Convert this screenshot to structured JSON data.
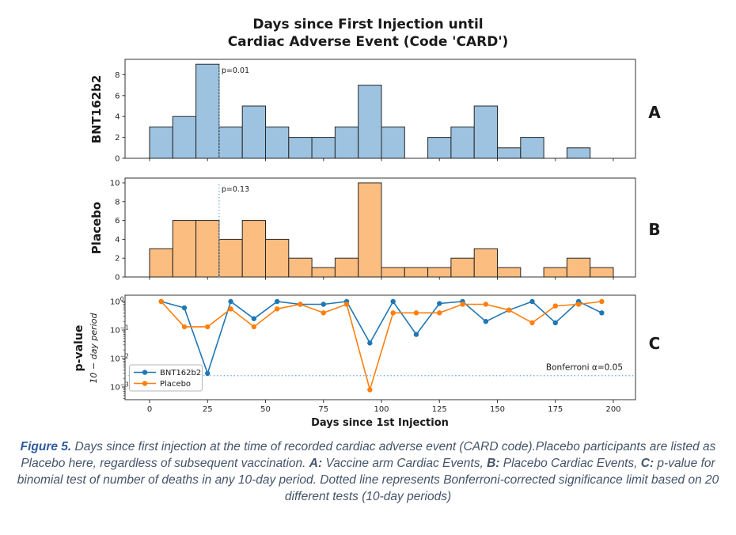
{
  "title": {
    "line1": "Days since First Injection until",
    "line2": "Cardiac Adverse Event (Code 'CARD')"
  },
  "chart_data": [
    {
      "type": "bar",
      "panel_label": "A",
      "ylabel": "BNT162b2",
      "bin_start": 0,
      "bin_width": 10,
      "bin_unit": "days",
      "values": [
        3,
        4,
        9,
        3,
        5,
        3,
        2,
        2,
        3,
        7,
        3,
        0,
        2,
        3,
        5,
        1,
        2,
        0,
        1,
        0
      ],
      "yticks": [
        0,
        2,
        4,
        6,
        8
      ],
      "ylim": [
        0,
        9.45
      ],
      "xlim": [
        0,
        200
      ],
      "annotation": {
        "text": "p=0.01",
        "x_day": 30
      },
      "bar_fill": "#9dc3e0",
      "bar_edge": "#262626"
    },
    {
      "type": "bar",
      "panel_label": "B",
      "ylabel": "Placebo",
      "bin_start": 0,
      "bin_width": 10,
      "bin_unit": "days",
      "values": [
        3,
        6,
        6,
        4,
        6,
        4,
        2,
        1,
        2,
        10,
        1,
        1,
        1,
        2,
        3,
        1,
        0,
        1,
        2,
        1
      ],
      "yticks": [
        0,
        2,
        4,
        6,
        8,
        10
      ],
      "ylim": [
        0,
        10.5
      ],
      "xlim": [
        0,
        200
      ],
      "annotation": {
        "text": "p=0.13",
        "x_day": 30
      },
      "bar_fill": "#fcbd80",
      "bar_edge": "#262626"
    },
    {
      "type": "line",
      "panel_label": "C",
      "ylabel": "p-value",
      "ylabel_sub": "10 − day period",
      "xlabel": "Days since 1st Injection",
      "yscale": "log",
      "ylim": [
        0.00036,
        1.67
      ],
      "yticks_exponents": [
        0,
        -1,
        -2,
        -3
      ],
      "xticks": [
        0,
        25,
        50,
        75,
        100,
        125,
        150,
        175,
        200
      ],
      "x": [
        5,
        15,
        25,
        35,
        45,
        55,
        65,
        75,
        85,
        95,
        105,
        115,
        125,
        135,
        145,
        155,
        165,
        175,
        185,
        195
      ],
      "series": [
        {
          "name": "BNT162b2",
          "color": "#1f77b4",
          "values": [
            1.0,
            0.6,
            0.003,
            1.0,
            0.25,
            1.0,
            0.8,
            0.8,
            1.0,
            0.035,
            1.0,
            0.07,
            0.85,
            1.0,
            0.2,
            0.5,
            1.0,
            0.18,
            1.0,
            0.4
          ]
        },
        {
          "name": "Placebo",
          "color": "#ff7f0e",
          "values": [
            1.0,
            0.13,
            0.13,
            0.55,
            0.13,
            0.55,
            0.8,
            0.4,
            0.8,
            0.0008,
            0.4,
            0.4,
            0.4,
            0.8,
            0.8,
            0.5,
            0.18,
            0.7,
            0.8,
            1.0
          ]
        }
      ],
      "hline": {
        "y": 0.0025,
        "label": "Bonferroni α=0.05",
        "color": "#7fb2d9"
      },
      "legend": {
        "position": "lower-left",
        "entries": [
          "BNT162b2",
          "Placebo"
        ]
      },
      "grid": false
    }
  ],
  "caption": {
    "segments": [
      {
        "text": "Figure 5.",
        "bold": true
      },
      {
        "text": " Days since first injection at the time of recorded cardiac adverse event (CARD code).Placebo participants are listed as Placebo here, regardless of subsequent vaccination. ",
        "bold": false
      },
      {
        "text": "A:",
        "bold": true
      },
      {
        "text": " Vaccine arm Cardiac Events, ",
        "bold": false
      },
      {
        "text": "B:",
        "bold": true
      },
      {
        "text": " Placebo Cardiac Events, ",
        "bold": false
      },
      {
        "text": "C:",
        "bold": true
      },
      {
        "text": " p-value for binomial test of number of deaths in any 10-day period. Dotted line represents Bonferroni-corrected significance limit based on 20 different tests (10-day periods)",
        "bold": false
      }
    ]
  },
  "colors": {
    "annotation_line": "#7fb2d9",
    "spine": "#333333",
    "caption_text": "#44546a",
    "caption_figure_label": "#2e5b9d"
  }
}
